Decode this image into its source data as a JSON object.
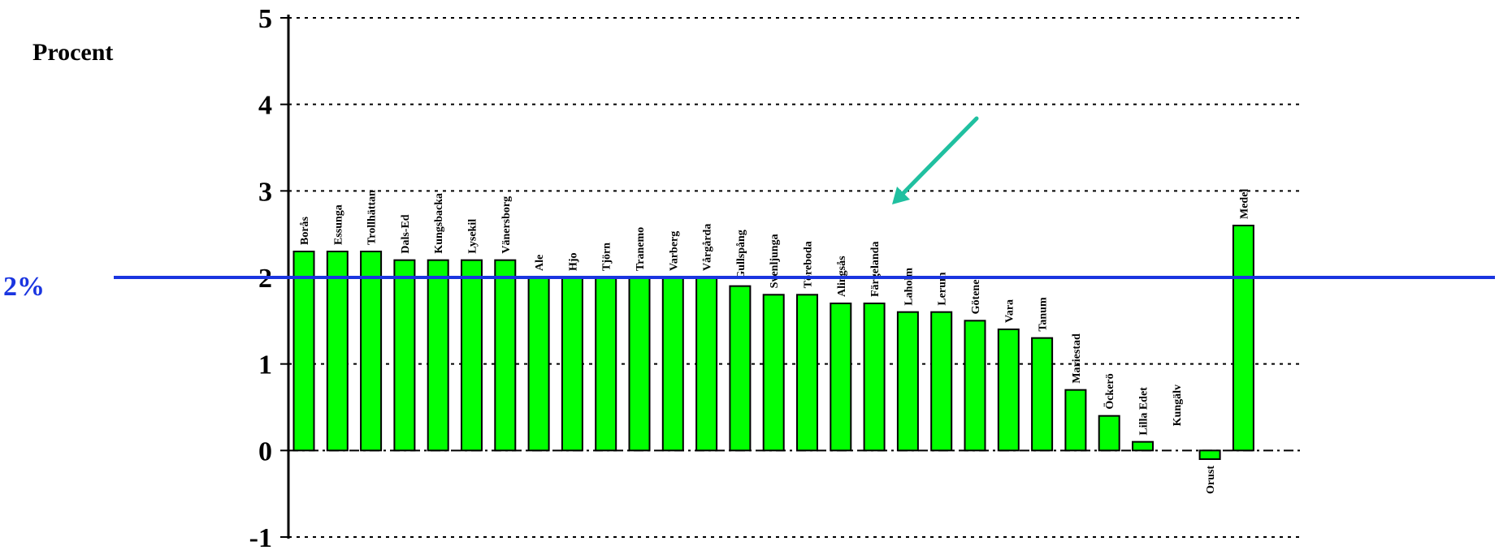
{
  "chart_data": {
    "type": "bar",
    "title": "",
    "xlabel": "",
    "ylabel": "Procent",
    "ylim": [
      -1,
      5
    ],
    "yticks": [
      -1,
      0,
      1,
      2,
      3,
      4,
      5
    ],
    "grid": true,
    "categories": [
      "Borås",
      "Essunga",
      "Trollhättan",
      "Dals-Ed",
      "Kungsbacka",
      "Lysekil",
      "Vänersborg",
      "Ale",
      "Hjo",
      "Tjörn",
      "Tranemo",
      "Varberg",
      "Vårgårda",
      "Gullspång",
      "Svenljunga",
      "Töreboda",
      "Alingsås",
      "Färgelanda",
      "Laholm",
      "Lerum",
      "Götene",
      "Vara",
      "Tanum",
      "Mariestad",
      "Öckerö",
      "Lilla Edet",
      "Kungälv",
      "Orust",
      "Medel"
    ],
    "values": [
      2.3,
      2.3,
      2.3,
      2.2,
      2.2,
      2.2,
      2.2,
      2.0,
      2.0,
      2.0,
      2.0,
      2.0,
      2.0,
      1.9,
      1.8,
      1.8,
      1.7,
      1.7,
      1.6,
      1.6,
      1.5,
      1.4,
      1.3,
      0.7,
      0.4,
      0.1,
      0.0,
      -0.1,
      2.6
    ],
    "bar_color": "#00ff00",
    "reference_line": {
      "value": 2,
      "label": "2%",
      "color": "#1a35e0"
    },
    "annotation": {
      "type": "arrow",
      "target": "Färgelanda",
      "color": "#20c0a0"
    }
  }
}
